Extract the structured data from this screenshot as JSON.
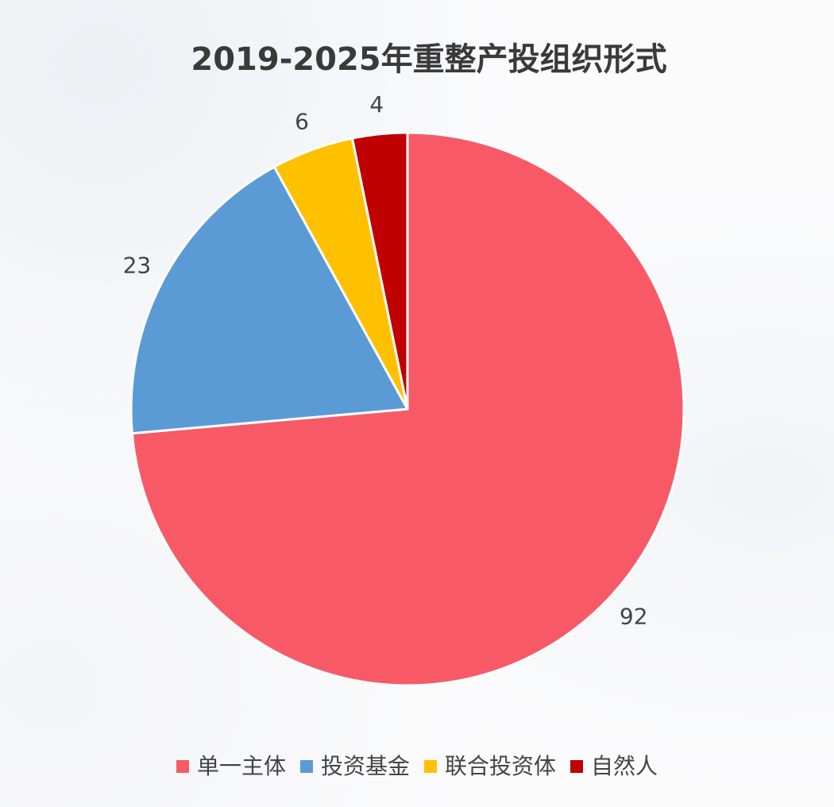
{
  "chart_data": {
    "type": "pie",
    "title": "2019-2025年重整产投组织形式",
    "categories": [
      "单一主体",
      "投资基金",
      "联合投资体",
      "自然人"
    ],
    "values": [
      92,
      23,
      6,
      4
    ],
    "colors": [
      "#f75a66",
      "#5b9bd5",
      "#ffc000",
      "#c00000"
    ],
    "start_angle_deg": 0,
    "direction": "clockwise",
    "legend_position": "bottom",
    "show_data_labels": true
  }
}
